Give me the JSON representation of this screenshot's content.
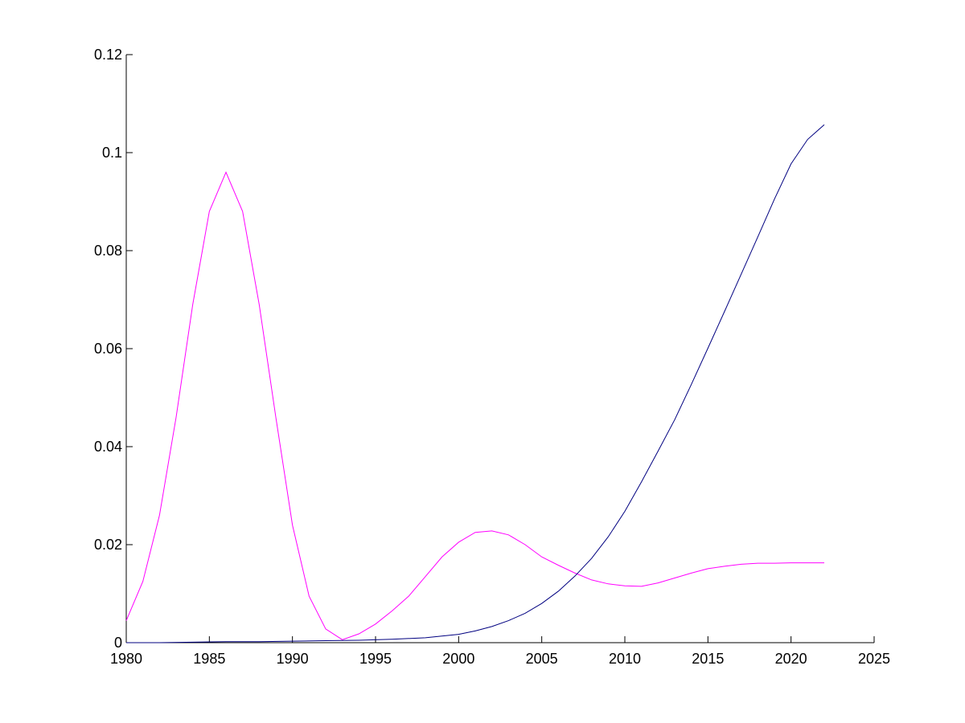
{
  "chart_data": {
    "type": "line",
    "title": "",
    "xlabel": "",
    "ylabel": "",
    "xlim": [
      1980,
      2025
    ],
    "ylim": [
      0,
      0.12
    ],
    "grid": false,
    "x_ticks": [
      "1980",
      "1985",
      "1990",
      "1995",
      "2000",
      "2005",
      "2010",
      "2015",
      "2020",
      "2025"
    ],
    "y_ticks": [
      "0",
      "0.02",
      "0.04",
      "0.06",
      "0.08",
      "0.1",
      "0.12"
    ],
    "series": [
      {
        "color": "#ff00ff",
        "x": [
          1980,
          1981,
          1982,
          1983,
          1984,
          1985,
          1986,
          1987,
          1988,
          1989,
          1990,
          1991,
          1992,
          1993,
          1994,
          1995,
          1996,
          1997,
          1998,
          1999,
          2000,
          2001,
          2002,
          2003,
          2004,
          2005,
          2006,
          2007,
          2008,
          2009,
          2010,
          2011,
          2012,
          2013,
          2014,
          2015,
          2016,
          2017,
          2018,
          2019,
          2020,
          2021,
          2022
        ],
        "values": [
          0.0045,
          0.0125,
          0.026,
          0.046,
          0.069,
          0.088,
          0.096,
          0.088,
          0.069,
          0.046,
          0.024,
          0.0095,
          0.0028,
          0.0006,
          0.0018,
          0.0038,
          0.0065,
          0.0095,
          0.0135,
          0.0175,
          0.0205,
          0.0225,
          0.0228,
          0.022,
          0.02,
          0.0175,
          0.0158,
          0.0142,
          0.0128,
          0.012,
          0.0116,
          0.0115,
          0.0122,
          0.0132,
          0.0142,
          0.0151,
          0.0156,
          0.016,
          0.0162,
          0.0162,
          0.0163,
          0.0163,
          0.0163
        ]
      },
      {
        "color": "#000080",
        "x": [
          1980,
          1982,
          1984,
          1986,
          1988,
          1990,
          1992,
          1994,
          1996,
          1998,
          2000,
          2001,
          2002,
          2003,
          2004,
          2005,
          2006,
          2007,
          2008,
          2009,
          2010,
          2011,
          2012,
          2013,
          2014,
          2015,
          2016,
          2017,
          2018,
          2019,
          2020,
          2021,
          2022
        ],
        "values": [
          0,
          0,
          0.0001,
          0.0002,
          0.0002,
          0.0003,
          0.0004,
          0.0005,
          0.0007,
          0.001,
          0.0017,
          0.0024,
          0.0033,
          0.0045,
          0.006,
          0.008,
          0.0105,
          0.0136,
          0.0172,
          0.0216,
          0.0268,
          0.0328,
          0.0391,
          0.0455,
          0.0527,
          0.0601,
          0.0676,
          0.0752,
          0.0828,
          0.0905,
          0.0977,
          0.1027,
          0.1057
        ]
      }
    ]
  }
}
